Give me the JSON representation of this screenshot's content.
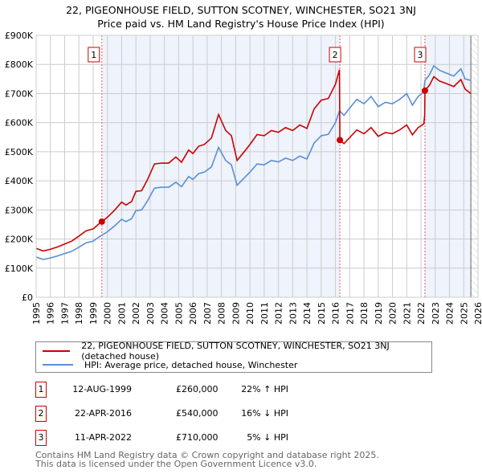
{
  "title_line1": "22, PIGEONHOUSE FIELD, SUTTON SCOTNEY, WINCHESTER, SO21 3NJ",
  "title_line2": "Price paid vs. HM Land Registry's House Price Index (HPI)",
  "colors": {
    "property": "#cc0000",
    "hpi": "#5b8ed6",
    "shade": "#eef3fc",
    "marker_line": "#ee5555"
  },
  "chart_data": {
    "type": "line",
    "xlim": [
      1995,
      2026
    ],
    "ylim": [
      0,
      900000
    ],
    "ytick_labels": [
      "£0",
      "£100K",
      "£200K",
      "£300K",
      "£400K",
      "£500K",
      "£600K",
      "£700K",
      "£800K",
      "£900K"
    ],
    "yticks": [
      0,
      100000,
      200000,
      300000,
      400000,
      500000,
      600000,
      700000,
      800000,
      900000
    ],
    "xticks": [
      1995,
      1996,
      1997,
      1998,
      1999,
      2000,
      2001,
      2002,
      2003,
      2004,
      2005,
      2006,
      2007,
      2008,
      2009,
      2010,
      2011,
      2012,
      2013,
      2014,
      2015,
      2016,
      2017,
      2018,
      2019,
      2020,
      2021,
      2022,
      2023,
      2024,
      2025,
      2026
    ],
    "grid": true,
    "shaded_ranges": [
      [
        1999.61,
        2016.31
      ],
      [
        2022.28,
        2025.5
      ]
    ],
    "hatched_from": 2025.5,
    "x": [
      1995.0,
      1995.5,
      1996.0,
      1996.5,
      1997.0,
      1997.5,
      1998.0,
      1998.5,
      1999.0,
      1999.4,
      1999.61,
      2000.0,
      2000.5,
      2001.0,
      2001.3,
      2001.7,
      2002.0,
      2002.4,
      2002.8,
      2003.3,
      2003.8,
      2004.3,
      2004.8,
      2005.2,
      2005.7,
      2006.0,
      2006.4,
      2006.8,
      2007.3,
      2007.8,
      2008.3,
      2008.7,
      2009.1,
      2009.5,
      2010.0,
      2010.5,
      2011.0,
      2011.5,
      2012.0,
      2012.5,
      2013.0,
      2013.5,
      2014.0,
      2014.5,
      2015.0,
      2015.5,
      2016.0,
      2016.28,
      2016.31,
      2016.6,
      2017.0,
      2017.5,
      2018.0,
      2018.5,
      2019.0,
      2019.5,
      2020.0,
      2020.5,
      2021.0,
      2021.4,
      2021.8,
      2022.2,
      2022.26,
      2022.28,
      2022.6,
      2022.9,
      2023.3,
      2023.8,
      2024.3,
      2024.8,
      2025.1,
      2025.5
    ],
    "series": [
      {
        "name": "22, PIGEONHOUSE FIELD, SUTTON SCOTNEY, WINCHESTER, SO21 3NJ (detached house)",
        "color": "#cc0000",
        "values": [
          168,
          159,
          165,
          173,
          183,
          193,
          210,
          228,
          235,
          252,
          260,
          275,
          299,
          327,
          317,
          329,
          364,
          366,
          403,
          458,
          461,
          461,
          482,
          464,
          506,
          494,
          519,
          525,
          547,
          628,
          573,
          555,
          470,
          494,
          525,
          559,
          555,
          573,
          567,
          583,
          573,
          592,
          580,
          647,
          677,
          683,
          732,
          782,
          540,
          528,
          549,
          575,
          562,
          583,
          553,
          566,
          562,
          575,
          592,
          558,
          583,
          596,
          625,
          710,
          729,
          758,
          743,
          734,
          724,
          748,
          715,
          700
        ]
      },
      {
        "name": "HPI: Average price, detached house, Winchester",
        "color": "#5b8ed6",
        "values": [
          138,
          130,
          135,
          142,
          150,
          158,
          172,
          187,
          193,
          207,
          213,
          225,
          245,
          268,
          260,
          270,
          298,
          300,
          330,
          375,
          378,
          378,
          395,
          380,
          415,
          405,
          425,
          430,
          448,
          515,
          470,
          455,
          385,
          405,
          430,
          458,
          455,
          470,
          465,
          478,
          470,
          485,
          475,
          530,
          555,
          560,
          600,
          640,
          640,
          625,
          650,
          680,
          665,
          690,
          655,
          670,
          665,
          680,
          700,
          660,
          690,
          705,
          740,
          745,
          765,
          795,
          780,
          770,
          760,
          785,
          750,
          745
        ]
      }
    ],
    "value_units": "thousands GBP",
    "sales": [
      {
        "label": "1",
        "x": 1999.61,
        "price": 260000
      },
      {
        "label": "2",
        "x": 2016.31,
        "price": 540000
      },
      {
        "label": "3",
        "x": 2022.28,
        "price": 710000
      }
    ]
  },
  "legend": {
    "property": "22, PIGEONHOUSE FIELD, SUTTON SCOTNEY, WINCHESTER, SO21 3NJ (detached house)",
    "hpi": "HPI: Average price, detached house, Winchester"
  },
  "transactions": [
    {
      "num": "1",
      "date": "12-AUG-1999",
      "price": "£260,000",
      "hpi": "22% ↑ HPI"
    },
    {
      "num": "2",
      "date": "22-APR-2016",
      "price": "£540,000",
      "hpi": "16% ↓ HPI"
    },
    {
      "num": "3",
      "date": "11-APR-2022",
      "price": "£710,000",
      "hpi": "5% ↓ HPI"
    }
  ],
  "footer1": "Contains HM Land Registry data © Crown copyright and database right 2025.",
  "footer2": "This data is licensed under the Open Government Licence v3.0."
}
